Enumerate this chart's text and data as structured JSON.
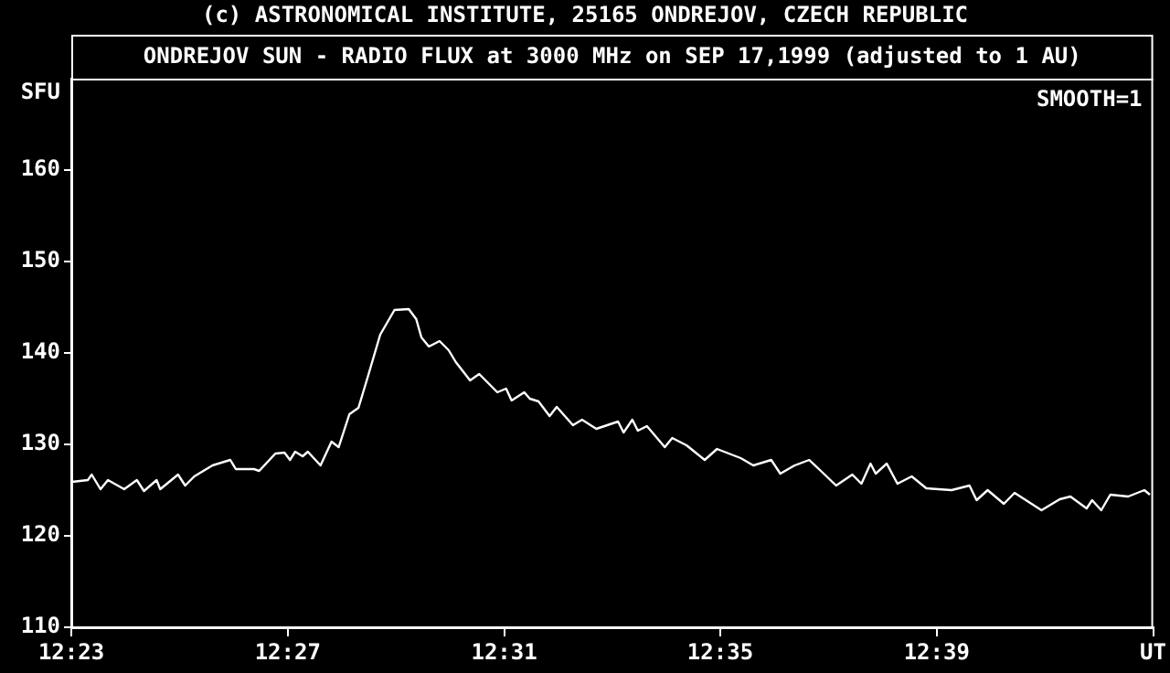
{
  "chart_data": {
    "type": "line",
    "title": "ONDREJOV SUN - RADIO FLUX at 3000 MHz on SEP 17,1999 (adjusted to 1 AU)",
    "ylabel": "SFU",
    "annotations": [
      "(c) ASTRONOMICAL INSTITUTE, 25165 ONDREJOV, CZECH REPUBLIC",
      "SMOOTH=1"
    ],
    "x": [
      12.3835,
      12.3884,
      12.3896,
      12.3923,
      12.3946,
      12.3996,
      12.4035,
      12.4057,
      12.4096,
      12.4107,
      12.4162,
      12.4184,
      12.4212,
      12.4268,
      12.4323,
      12.434,
      12.4396,
      12.4412,
      12.4462,
      12.449,
      12.4507,
      12.4523,
      12.4546,
      12.4562,
      12.4601,
      12.4635,
      12.4657,
      12.469,
      12.4718,
      12.4746,
      12.4785,
      12.4829,
      12.4873,
      12.4896,
      12.4912,
      12.4935,
      12.4968,
      12.4996,
      12.5018,
      12.5062,
      12.509,
      12.5118,
      12.5146,
      12.5173,
      12.519,
      12.5229,
      12.5246,
      12.5273,
      12.5307,
      12.5329,
      12.5379,
      12.5407,
      12.5451,
      12.5518,
      12.5535,
      12.5562,
      12.5579,
      12.5607,
      12.5662,
      12.5685,
      12.5729,
      12.5785,
      12.5823,
      12.5896,
      12.5935,
      12.599,
      12.6018,
      12.6062,
      12.6107,
      12.6146,
      12.619,
      12.624,
      12.6268,
      12.6296,
      12.6312,
      12.6346,
      12.6379,
      12.6423,
      12.6468,
      12.6546,
      12.6601,
      12.6623,
      12.6657,
      12.6707,
      12.674,
      12.6823,
      12.6879,
      12.6912,
      12.6962,
      12.6979,
      12.7007,
      12.7035,
      12.709,
      12.714,
      12.7157
    ],
    "values": [
      125.9,
      126.1,
      126.7,
      125.1,
      126.1,
      125.1,
      126.1,
      124.9,
      126.1,
      125.1,
      126.7,
      125.5,
      126.5,
      127.7,
      128.3,
      127.3,
      127.3,
      127.1,
      129.0,
      129.1,
      128.3,
      129.2,
      128.7,
      129.2,
      127.7,
      130.3,
      129.7,
      133.3,
      134.0,
      137.3,
      142.0,
      144.7,
      144.8,
      143.7,
      141.7,
      140.7,
      141.3,
      140.3,
      139.0,
      137.0,
      137.7,
      136.7,
      135.7,
      136.1,
      134.8,
      135.7,
      135.0,
      134.7,
      133.1,
      134.1,
      132.1,
      132.7,
      131.7,
      132.5,
      131.3,
      132.7,
      131.5,
      132.0,
      129.7,
      130.7,
      129.9,
      128.3,
      129.5,
      128.5,
      127.7,
      128.3,
      126.8,
      127.7,
      128.3,
      127.0,
      125.5,
      126.7,
      125.7,
      127.9,
      126.8,
      127.9,
      125.7,
      126.5,
      125.2,
      125.0,
      125.5,
      123.9,
      125.0,
      123.5,
      124.7,
      122.8,
      124.0,
      124.3,
      123.0,
      123.9,
      122.8,
      124.5,
      124.3,
      125.0,
      124.5
    ],
    "color": "#ffffff",
    "marker": "none",
    "line_style": "solid",
    "grid": false,
    "legend": false,
    "xlim": [
      12.3833,
      12.7167
    ],
    "xticks": [
      {
        "value": 12.3833,
        "label": "12:23"
      },
      {
        "value": 12.45,
        "label": "12:27"
      },
      {
        "value": 12.5167,
        "label": "12:31"
      },
      {
        "value": 12.5833,
        "label": "12:35"
      },
      {
        "value": 12.65,
        "label": "12:39"
      },
      {
        "value": 12.7167,
        "label": "UT"
      }
    ],
    "ylim": [
      110,
      170
    ],
    "yticks": [
      110,
      120,
      130,
      140,
      150,
      160
    ]
  }
}
